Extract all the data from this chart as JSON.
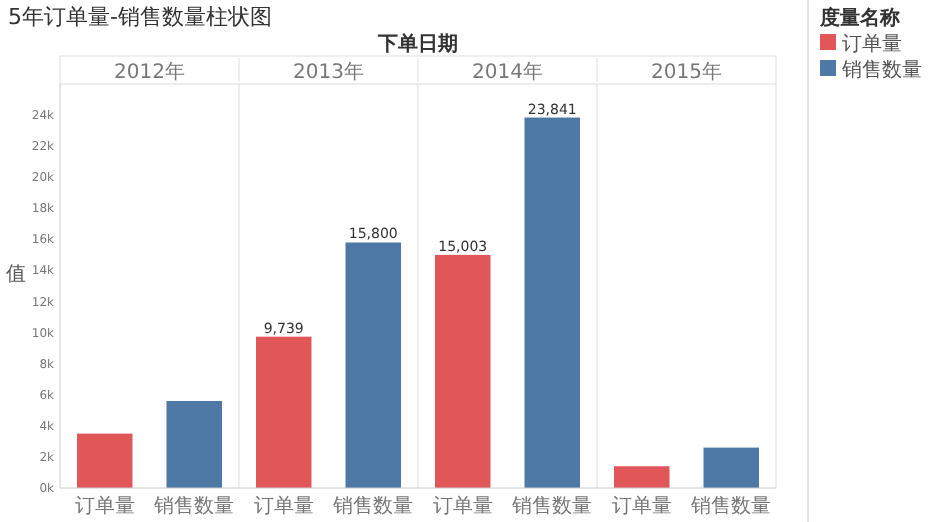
{
  "chart_data": {
    "type": "bar",
    "title": "5年订单量-销售数量柱状图",
    "xlabel": "下单日期",
    "ylabel": "值",
    "legend_title": "度量名称",
    "legend": "top right",
    "categories": [
      "2012年",
      "2013年",
      "2014年",
      "2015年"
    ],
    "series": [
      {
        "name": "订单量",
        "color": "#e15759",
        "values": [
          3500,
          9739,
          15003,
          1400
        ],
        "value_labels": [
          null,
          "9,739",
          "15,003",
          null
        ]
      },
      {
        "name": "销售数量",
        "color": "#4e79a7",
        "values": [
          5600,
          15800,
          23841,
          2600
        ],
        "value_labels": [
          null,
          "15,800",
          "23,841",
          null
        ]
      }
    ],
    "ylim": [
      0,
      26000
    ],
    "yticks": [
      {
        "value": 0,
        "label": "0k"
      },
      {
        "value": 2000,
        "label": "2k"
      },
      {
        "value": 4000,
        "label": "4k"
      },
      {
        "value": 6000,
        "label": "6k"
      },
      {
        "value": 8000,
        "label": "8k"
      },
      {
        "value": 10000,
        "label": "10k"
      },
      {
        "value": 12000,
        "label": "12k"
      },
      {
        "value": 14000,
        "label": "14k"
      },
      {
        "value": 16000,
        "label": "16k"
      },
      {
        "value": 18000,
        "label": "18k"
      },
      {
        "value": 20000,
        "label": "20k"
      },
      {
        "value": 22000,
        "label": "22k"
      },
      {
        "value": 24000,
        "label": "24k"
      }
    ]
  }
}
